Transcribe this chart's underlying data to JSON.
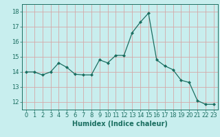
{
  "x": [
    0,
    1,
    2,
    3,
    4,
    5,
    6,
    7,
    8,
    9,
    10,
    11,
    12,
    13,
    14,
    15,
    16,
    17,
    18,
    19,
    20,
    21,
    22,
    23
  ],
  "y": [
    14.0,
    14.0,
    13.8,
    14.0,
    14.6,
    14.3,
    13.85,
    13.8,
    13.8,
    14.8,
    14.6,
    15.1,
    15.1,
    16.6,
    17.3,
    17.9,
    14.8,
    14.4,
    14.15,
    13.45,
    13.3,
    12.1,
    11.85,
    11.85
  ],
  "line_color": "#1a6e60",
  "marker": "D",
  "marker_size": 2.0,
  "bg_color": "#c8eeee",
  "grid_color_major": "#d4a8a8",
  "grid_color_minor": "#d4c0c0",
  "xlabel": "Humidex (Indice chaleur)",
  "xlabel_fontsize": 7,
  "tick_fontsize": 6,
  "ylim": [
    11.5,
    18.5
  ],
  "yticks": [
    12,
    13,
    14,
    15,
    16,
    17,
    18
  ],
  "xticks": [
    0,
    1,
    2,
    3,
    4,
    5,
    6,
    7,
    8,
    9,
    10,
    11,
    12,
    13,
    14,
    15,
    16,
    17,
    18,
    19,
    20,
    21,
    22,
    23
  ],
  "xlim": [
    -0.5,
    23.5
  ]
}
